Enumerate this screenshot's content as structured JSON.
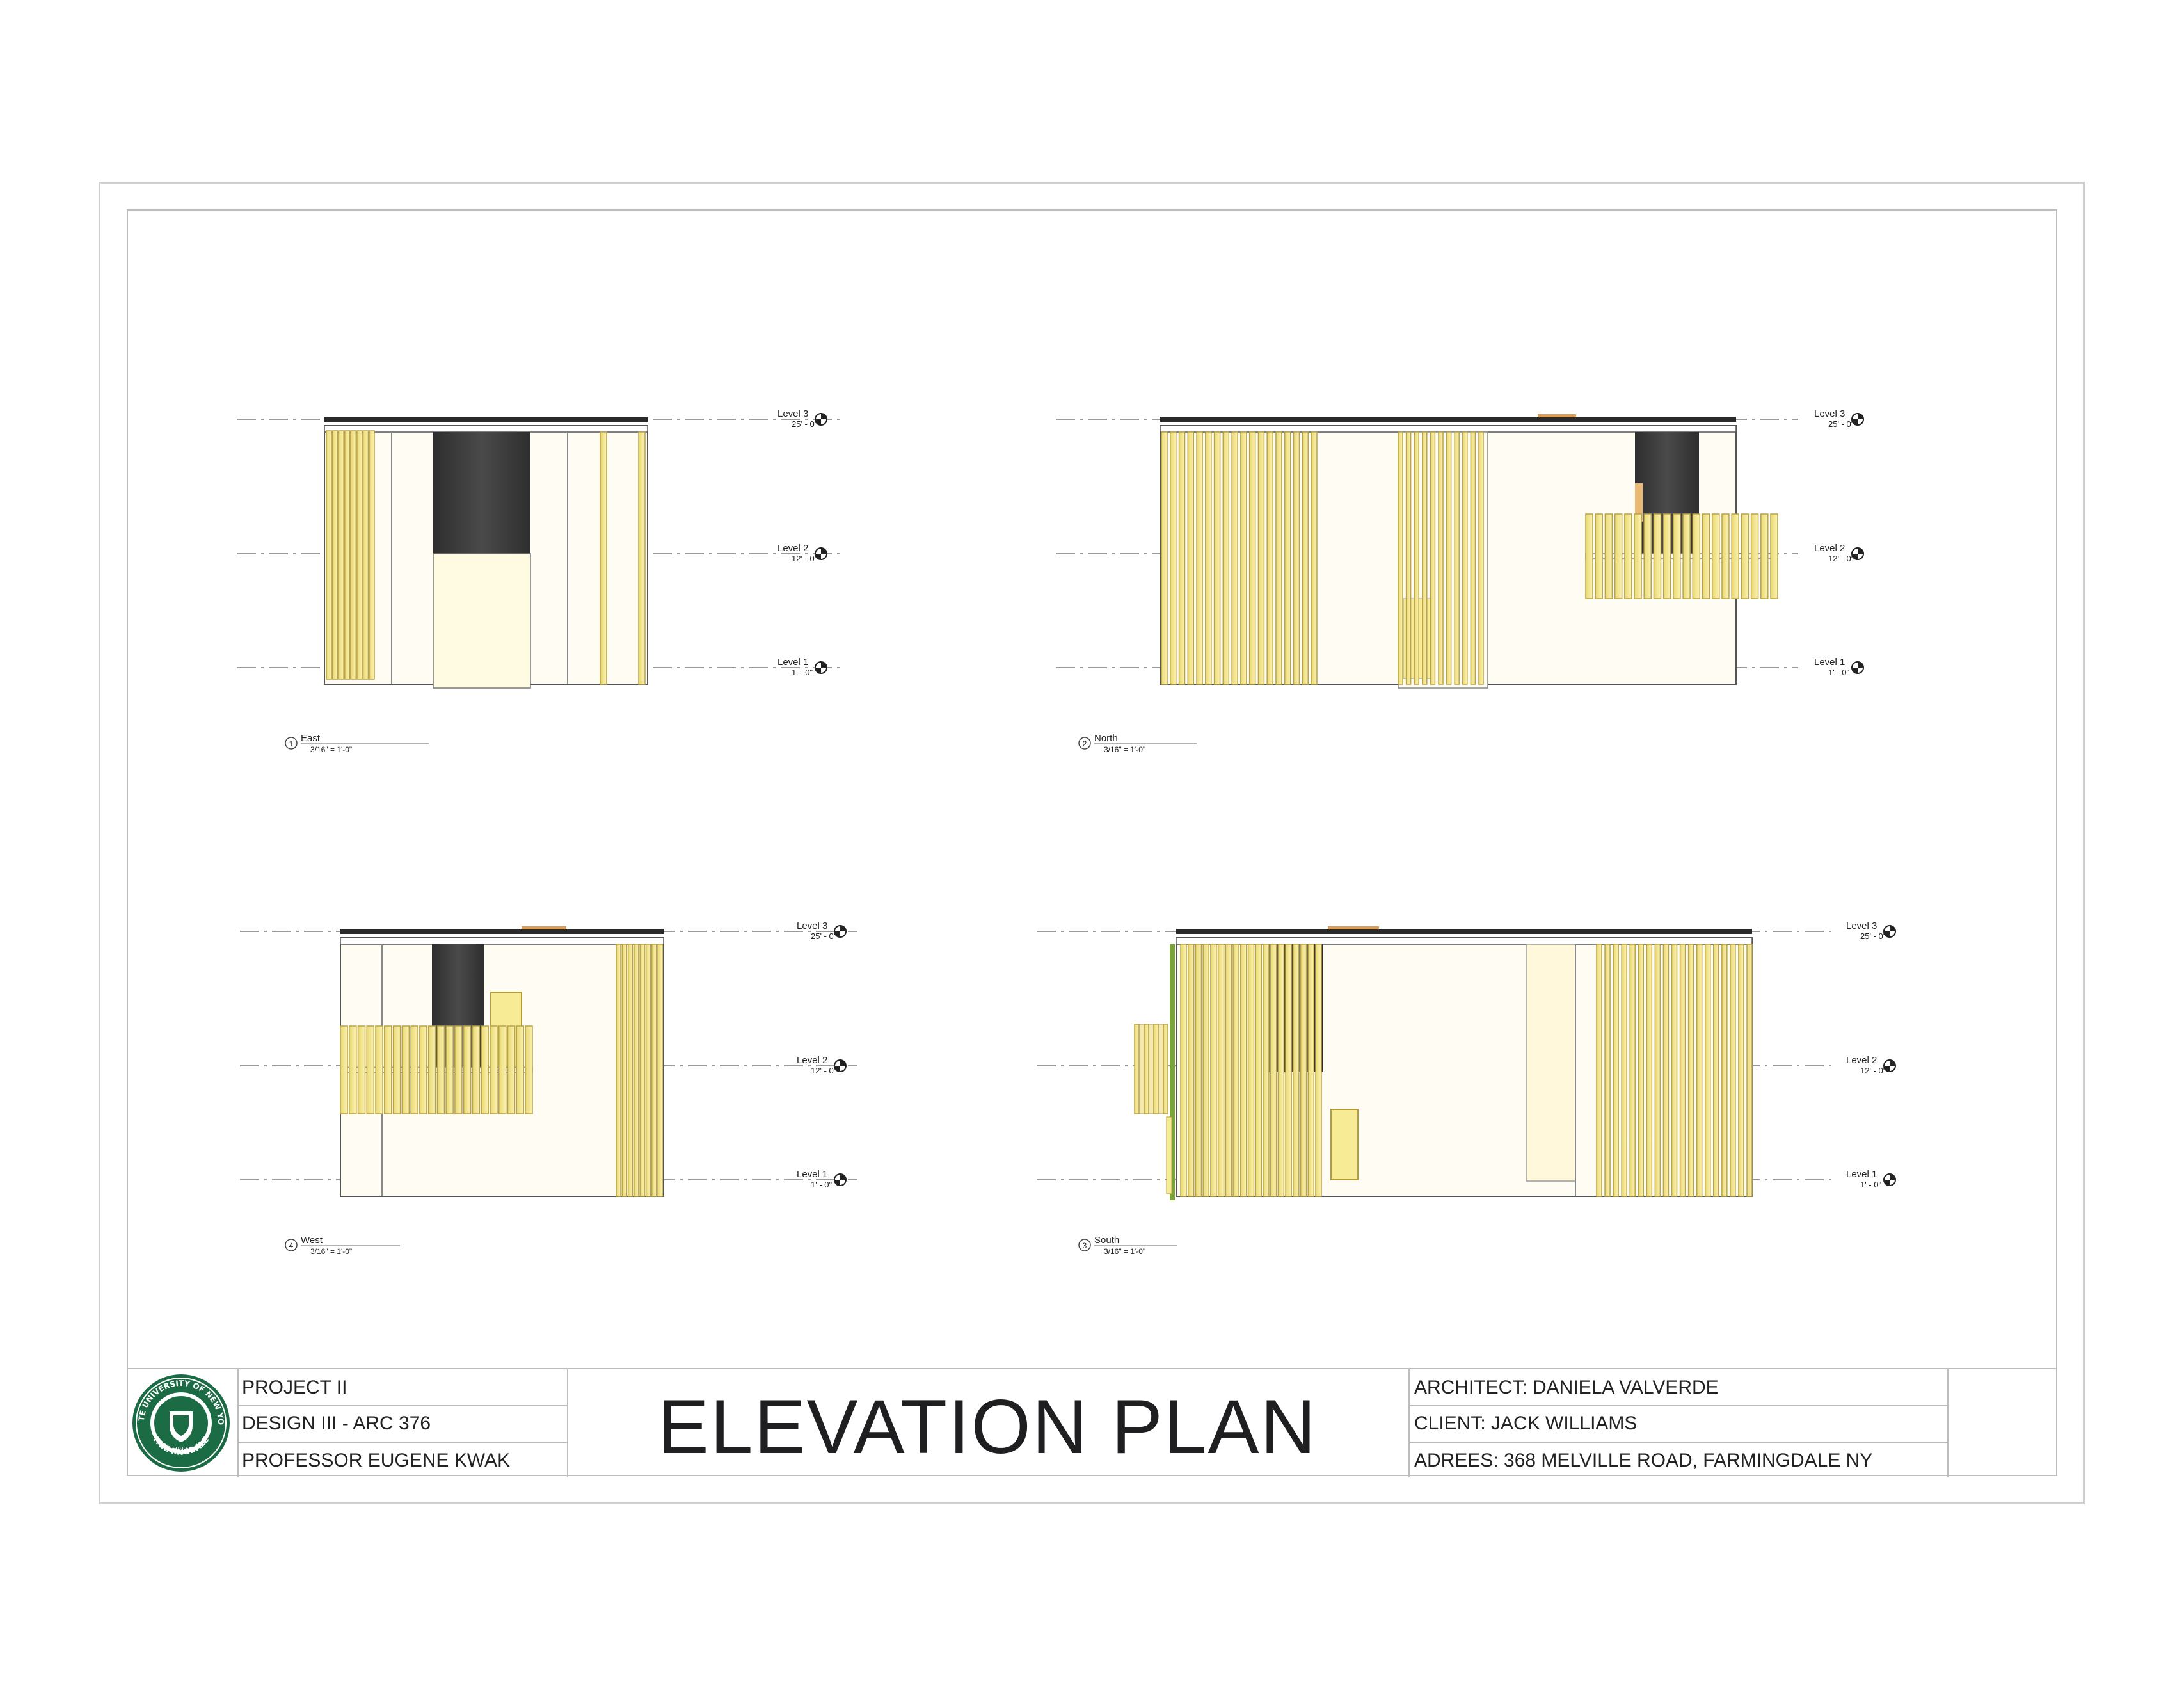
{
  "views": [
    {
      "id": "east",
      "number": "1",
      "name": "East",
      "scale": "3/16\" = 1'-0\""
    },
    {
      "id": "north",
      "number": "2",
      "name": "North",
      "scale": "3/16\" = 1'-0\""
    },
    {
      "id": "west",
      "number": "4",
      "name": "West",
      "scale": "3/16\" = 1'-0\""
    },
    {
      "id": "south",
      "number": "3",
      "name": "South",
      "scale": "3/16\" = 1'-0\""
    }
  ],
  "levels": [
    {
      "name": "Level 3",
      "elevation": "25' - 0\""
    },
    {
      "name": "Level 2",
      "elevation": "12' - 0\""
    },
    {
      "name": "Level 1",
      "elevation": "1' - 0\""
    }
  ],
  "title_block": {
    "project": "PROJECT II",
    "course": "DESIGN III - ARC 376",
    "professor": "PROFESSOR EUGENE KWAK",
    "sheet_title": "ELEVATION PLAN",
    "architect": "ARCHITECT: DANIELA VALVERDE",
    "client": "CLIENT: JACK WILLIAMS",
    "address": "ADREES: 368 MELVILLE ROAD, FARMINGDALE NY"
  },
  "logo": {
    "text_top": "STATE UNIVERSITY OF NEW YORK",
    "text_bottom": "FARMINGDALE",
    "year": "1912",
    "color": "#1b6b45"
  },
  "colors": {
    "slat": "#f2e68c",
    "slat_edge": "#b9a24a",
    "glass": "#3a3a3a",
    "wall": "#fffdf3",
    "door": "#f7ec95"
  }
}
